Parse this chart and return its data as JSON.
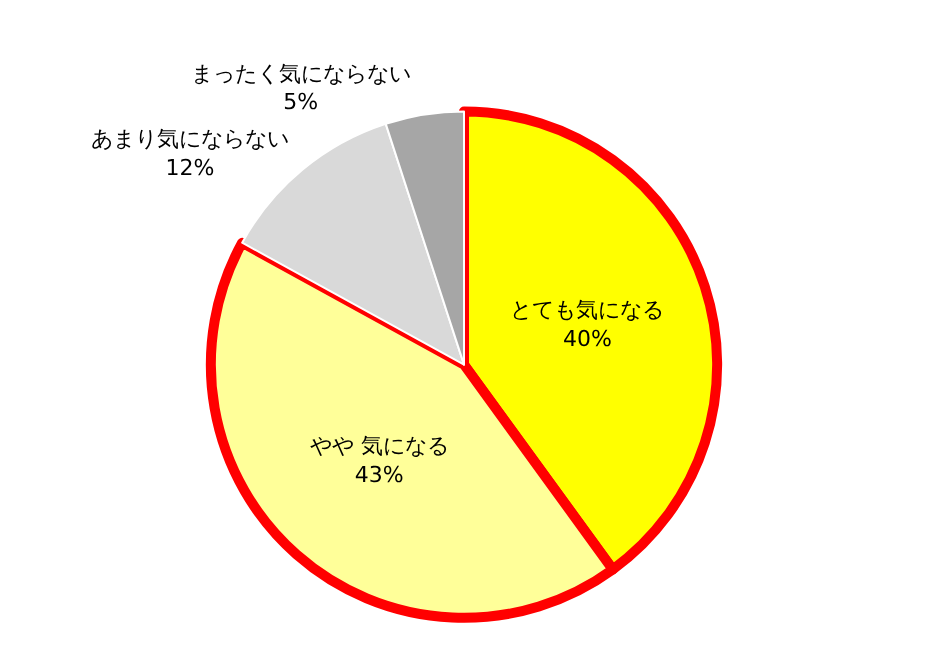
{
  "chart_data": {
    "type": "pie",
    "categories": [
      "とても気になる",
      "やや 気になる",
      "あまり気にならない",
      "まったく気にならない"
    ],
    "values": [
      40,
      43,
      12,
      5
    ],
    "value_labels": [
      "40%",
      "43%",
      "12%",
      "5%"
    ],
    "colors": [
      "#ffff00",
      "#ffff99",
      "#d9d9d9",
      "#a6a6a6"
    ],
    "legend": false
  }
}
